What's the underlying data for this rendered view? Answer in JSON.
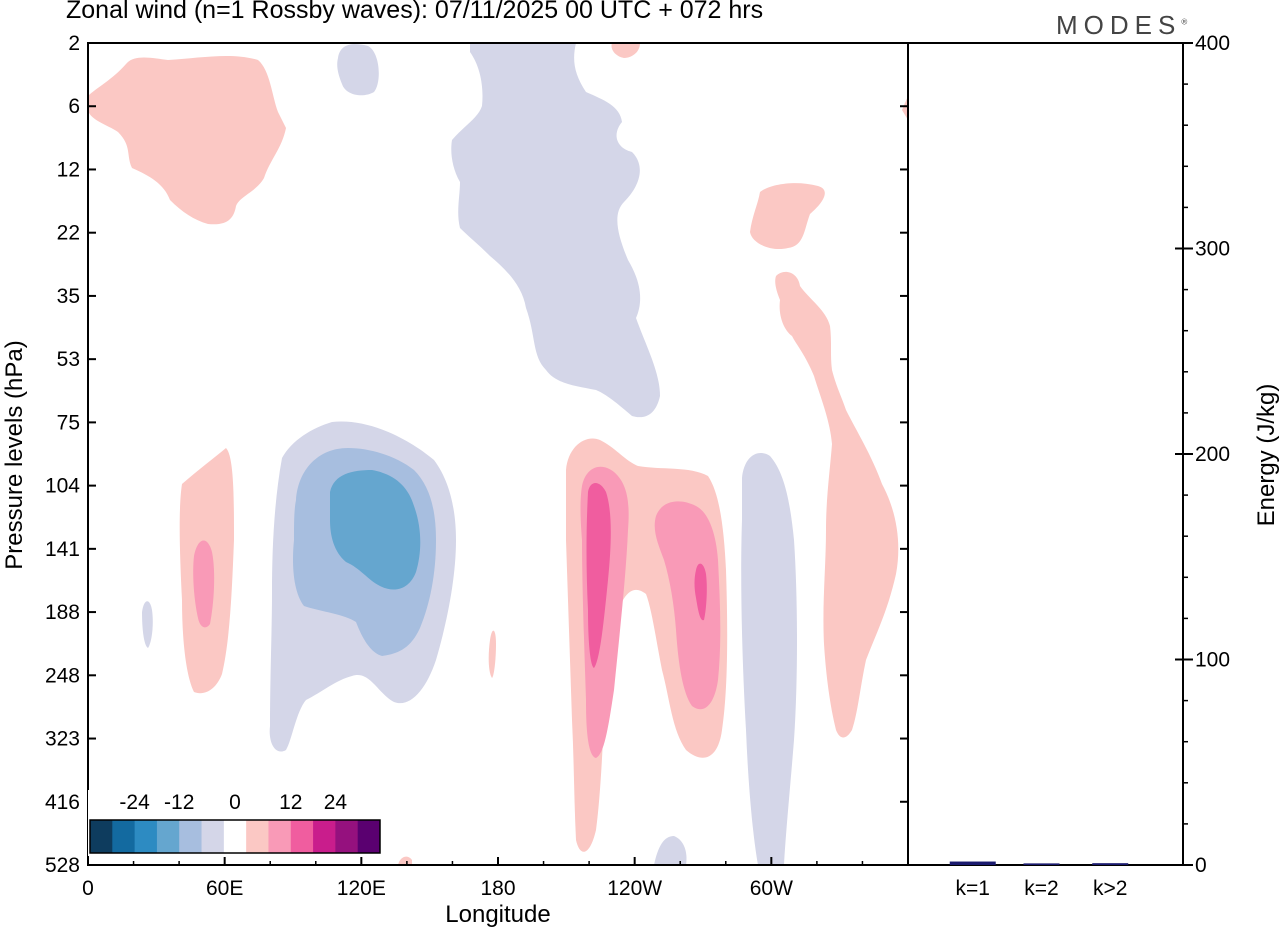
{
  "header": {
    "title": "Zonal wind (n=1 Rossby waves):  07/11/2025  00 UTC  + 072 hrs",
    "brand": "MODES",
    "brand_mark": "®"
  },
  "chart_data": [
    {
      "type": "contour",
      "title": "Zonal wind (n=1 Rossby waves):  07/11/2025  00 UTC  + 072 hrs",
      "xlabel": "Longitude",
      "ylabel": "Pressure levels (hPa)",
      "x_ticks": [
        "0",
        "60E",
        "120E",
        "180",
        "120W",
        "60W"
      ],
      "x_tick_degrees": [
        0,
        60,
        120,
        180,
        240,
        300
      ],
      "xlim_degrees_east": [
        0,
        360
      ],
      "y_ticks": [
        "2",
        "6",
        "12",
        "22",
        "35",
        "53",
        "75",
        "104",
        "141",
        "188",
        "248",
        "323",
        "416",
        "528"
      ],
      "y_axis_reversed": true,
      "colorbar": {
        "labels": [
          "-24",
          "-12",
          "0",
          "12",
          "24"
        ],
        "levels": [
          -30,
          -24,
          -18,
          -12,
          -6,
          -3,
          3,
          6,
          12,
          18,
          24,
          30
        ],
        "colors": [
          "#0e3c5e",
          "#136aa0",
          "#2d8bc2",
          "#65a6cf",
          "#a7bedf",
          "#d4d6e8",
          "#ffffff",
          "#fbc8c4",
          "#f99ab7",
          "#f05d9f",
          "#c91d8c",
          "#95117e",
          "#5a0070"
        ]
      },
      "regions": [
        {
          "name": "positive-upper-left",
          "sign": "positive",
          "lon_deg": [
            0,
            88
          ],
          "p_hPa": [
            2,
            22
          ],
          "min_abs_ms": 3
        },
        {
          "name": "negative-upper-center",
          "sign": "negative",
          "lon_deg": [
            108,
            250
          ],
          "p_hPa": [
            2,
            75
          ],
          "min_abs_ms": 3
        },
        {
          "name": "negative-core-120E",
          "sign": "negative",
          "lon_deg": [
            105,
            135
          ],
          "p_hPa": [
            104,
            188
          ],
          "peak_ms": -12
        },
        {
          "name": "positive-50E",
          "sign": "positive",
          "lon_deg": [
            40,
            60
          ],
          "p_hPa": [
            90,
            250
          ],
          "peak_ms": 6
        },
        {
          "name": "positive-core-120W",
          "sign": "positive",
          "lon_deg": [
            228,
            250
          ],
          "p_hPa": [
            85,
            520
          ],
          "peak_ms": 18
        },
        {
          "name": "positive-core-90W",
          "sign": "positive",
          "lon_deg": [
            250,
            280
          ],
          "p_hPa": [
            100,
            360
          ],
          "peak_ms": 18
        },
        {
          "name": "negative-60W",
          "sign": "negative",
          "lon_deg": [
            288,
            303
          ],
          "p_hPa": [
            100,
            528
          ],
          "min_abs_ms": 3
        },
        {
          "name": "positive-east-tail",
          "sign": "positive",
          "lon_deg": [
            303,
            358
          ],
          "p_hPa": [
            35,
            360
          ],
          "min_abs_ms": 3
        }
      ]
    },
    {
      "type": "bar",
      "xlabel": "",
      "ylabel": "Energy (J/kg)",
      "categories": [
        "k=1",
        "k=2",
        "k>2"
      ],
      "values": [
        1.2,
        0.3,
        0.4
      ],
      "ylim": [
        0,
        400
      ],
      "y_ticks": [
        "0",
        "100",
        "200",
        "300",
        "400"
      ],
      "bar_color": "#1a1a6e"
    }
  ]
}
